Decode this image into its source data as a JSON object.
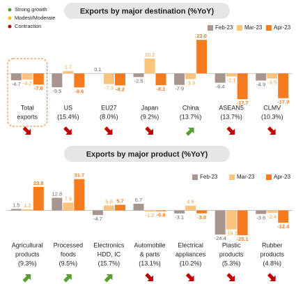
{
  "status_legend": [
    {
      "name": "Strong growth",
      "color": "#5c9e31"
    },
    {
      "name": "Modest/Moderate",
      "color": "#ffc000"
    },
    {
      "name": "Contraction",
      "color": "#c00000"
    }
  ],
  "chart_data": [
    {
      "type": "bar",
      "title": "Exports by major destination (%YoY)",
      "categories": [
        [
          "Total",
          "exports"
        ],
        [
          "US",
          "(15.4%)"
        ],
        [
          "EU27",
          "(8.0%)"
        ],
        [
          "Japan",
          "(9.2%)"
        ],
        [
          "China",
          "(13.7%)"
        ],
        [
          "ASEAN5",
          "(13.7%)"
        ],
        [
          "CLMV",
          "(10.3%)"
        ]
      ],
      "indicators": [
        "Contraction",
        "Contraction",
        "Contraction",
        "Contraction",
        "Strong growth",
        "Contraction",
        "Contraction"
      ],
      "highlight_category": 0,
      "series": [
        {
          "name": "Feb-23",
          "color": "#a8958f",
          "values": [
            -4.7,
            -9.5,
            0.1,
            -2.5,
            -7.9,
            -6.4,
            -4.9
          ]
        },
        {
          "name": "Mar-23",
          "color": "#fbc47e",
          "values": [
            -4.2,
            1.7,
            -7.3,
            10.2,
            -3.9,
            -2.1,
            -3.5
          ]
        },
        {
          "name": "Apr-23",
          "color": "#f47b20",
          "values": [
            -7.6,
            -9.6,
            -8.2,
            -8.1,
            23.0,
            -17.7,
            -17.0
          ],
          "value_labels": [
            "-7.6",
            "-9.6",
            "-8.2",
            "-8.1",
            "23.0",
            "-17.7",
            "-17.0"
          ]
        }
      ],
      "ylim": [
        -20,
        25
      ]
    },
    {
      "type": "bar",
      "title": "Exports by major product (%YoY)",
      "categories": [
        [
          "Agricultural",
          "products",
          "(9.3%)"
        ],
        [
          "Processed",
          "foods",
          "(9.5%)"
        ],
        [
          "Electronics",
          "HDD, IC",
          "(15.7%)"
        ],
        [
          "Automobile",
          "& parts",
          "(13.1%)"
        ],
        [
          "Electrical",
          "appliances",
          "(10.2%)"
        ],
        [
          "Plastic",
          "products",
          "(5.3%)"
        ],
        [
          "Rubber",
          "products",
          "(4.8%)"
        ]
      ],
      "indicators": [
        "Strong growth",
        "Strong growth",
        "Strong growth",
        "Contraction",
        "Contraction",
        "Contraction",
        "Contraction"
      ],
      "series": [
        {
          "name": "Feb-23",
          "color": "#a8958f",
          "values": [
            1.5,
            12.8,
            -4.7,
            6.7,
            -3.1,
            -24.4,
            -3.6
          ]
        },
        {
          "name": "Mar-23",
          "color": "#fbc47e",
          "values": [
            1.2,
            7.9,
            5.0,
            -1.2,
            4.8,
            -19.2,
            -2.4
          ],
          "value_labels": [
            "1.2",
            "7.9",
            "5.0",
            "-1.2",
            "4.8",
            "-19.2",
            "-2.4"
          ]
        },
        {
          "name": "Apr-23",
          "color": "#f47b20",
          "values": [
            23.8,
            31.7,
            5.7,
            -0.8,
            -3.0,
            -25.1,
            -12.4
          ],
          "value_labels": [
            "23.8",
            "31.7",
            "5.7",
            "-0.8",
            "-3.0",
            "-25.1",
            "-12.4"
          ]
        }
      ],
      "ylim": [
        -30,
        35
      ]
    }
  ]
}
